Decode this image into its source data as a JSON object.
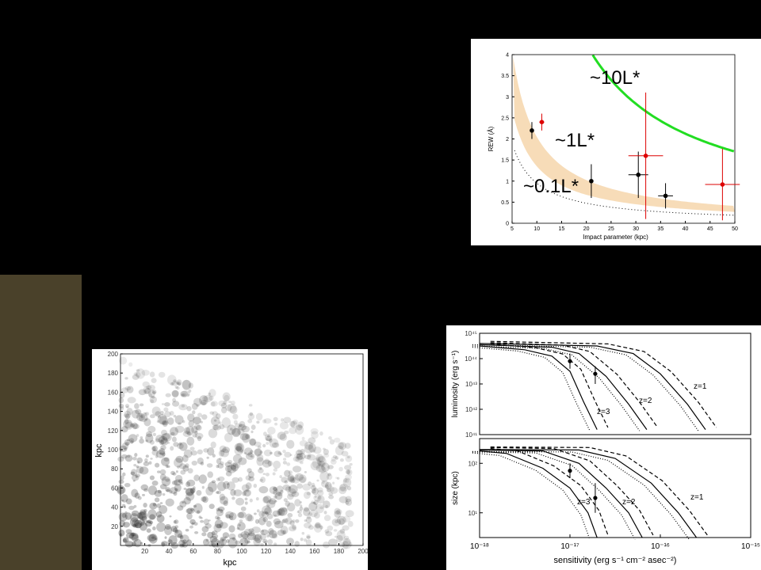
{
  "background": "#000000",
  "side_bar_color": "#4a412a",
  "chart_data": [
    {
      "type": "scatter",
      "xlabel": "Impact parameter (kpc)",
      "ylabel": "REW (Å)",
      "xlim": [
        5,
        50
      ],
      "ylim": [
        0,
        4
      ],
      "x_ticks": [
        "5",
        "10",
        "15",
        "20",
        "25",
        "30",
        "35",
        "40",
        "45",
        "50"
      ],
      "y_ticks": [
        "0",
        "0.5",
        "1",
        "1.5",
        "2",
        "2.5",
        "3",
        "3.5",
        "4"
      ],
      "annotations": [
        "~10L*",
        "~1L*",
        "~0.1L*"
      ],
      "colors": {
        "band": "#f7dcb8",
        "ten_l": "#22dd22",
        "red": "#dd0000",
        "black": "#000000"
      },
      "series": [
        {
          "color": "black",
          "points": [
            {
              "x": 9,
              "y": 2.2,
              "xerr": 0,
              "yerr": 0.2
            },
            {
              "x": 21,
              "y": 1.0,
              "xerr": 0,
              "yerr": 0.4
            },
            {
              "x": 30.5,
              "y": 1.15,
              "xerr": 2,
              "yerr": 0.55
            },
            {
              "x": 36,
              "y": 0.65,
              "xerr": 1.5,
              "yerr": 0.3
            }
          ]
        },
        {
          "color": "red",
          "points": [
            {
              "x": 11,
              "y": 2.4,
              "xerr": 0.5,
              "yerr": 0.2
            },
            {
              "x": 32,
              "y": 1.6,
              "xerr": 3.5,
              "yerr": 1.5
            },
            {
              "x": 47.5,
              "y": 0.92,
              "xerr": 3.5,
              "yerr": 0.85
            }
          ]
        }
      ]
    },
    {
      "type": "heatmap",
      "xlabel": "kpc",
      "ylabel": "kpc",
      "xlim": [
        0,
        200
      ],
      "ylim": [
        0,
        200
      ],
      "x_ticks": [
        "20",
        "40",
        "60",
        "80",
        "100",
        "120",
        "140",
        "160",
        "180",
        "200"
      ],
      "y_ticks": [
        "20",
        "40",
        "60",
        "80",
        "100",
        "120",
        "140",
        "160",
        "180",
        "200"
      ]
    },
    {
      "type": "line",
      "panels": [
        {
          "ylabel": "luminosity (erg s⁻¹)",
          "y_ticks": [
            "10⁴¹",
            "10⁴²",
            "10⁴³",
            "10⁴⁴",
            "10⁴⁵"
          ],
          "labels": [
            "z=1",
            "z=2",
            "z=3"
          ]
        },
        {
          "ylabel": "size (kpc)",
          "y_ticks": [
            "10¹",
            "10²"
          ],
          "labels": [
            "z=1",
            "z=2",
            "z=3"
          ]
        }
      ],
      "xlabel": "sensitivity (erg s⁻¹ cm⁻² asec⁻²)",
      "x_ticks": [
        "10⁻¹⁸",
        "10⁻¹⁷",
        "10⁻¹⁶",
        "10⁻¹⁵"
      ],
      "xlim": [
        1e-18,
        1e-15
      ]
    }
  ]
}
